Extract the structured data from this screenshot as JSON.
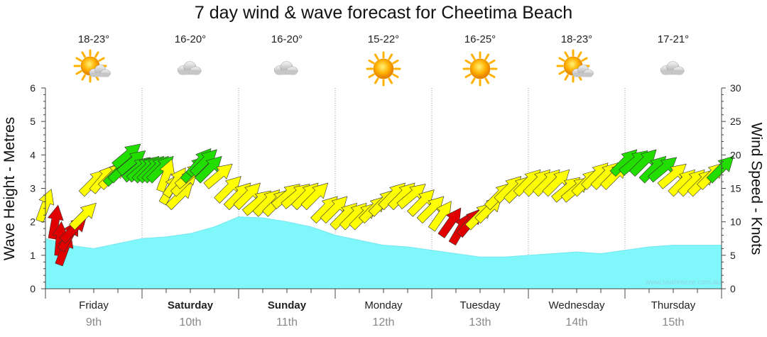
{
  "title": "7 day wind & wave forecast for Cheetima Beach",
  "watermark": "www.seabreeze.com.au",
  "chart_data": {
    "type": "area",
    "left_axis": {
      "label": "Wave Height - Metres",
      "ylim": [
        0,
        6
      ],
      "ticks": [
        "0",
        "1",
        "2",
        "3",
        "4",
        "5",
        "6"
      ]
    },
    "right_axis": {
      "label": "Wind Speed - Knots",
      "ylim": [
        0,
        30
      ],
      "ticks": [
        "0",
        "5",
        "10",
        "15",
        "20",
        "25",
        "30"
      ]
    },
    "days": [
      {
        "day": "Friday",
        "date": "9th",
        "bold": false,
        "temp": "18-23°",
        "icon": "partly-cloudy-icon"
      },
      {
        "day": "Saturday",
        "date": "10th",
        "bold": true,
        "temp": "16-20°",
        "icon": "cloudy-icon"
      },
      {
        "day": "Sunday",
        "date": "11th",
        "bold": true,
        "temp": "16-20°",
        "icon": "cloudy-icon"
      },
      {
        "day": "Monday",
        "date": "12th",
        "bold": false,
        "temp": "15-22°",
        "icon": "sunny-icon"
      },
      {
        "day": "Tuesday",
        "date": "13th",
        "bold": false,
        "temp": "16-25°",
        "icon": "sunny-icon"
      },
      {
        "day": "Wednesday",
        "date": "14th",
        "bold": false,
        "temp": "18-23°",
        "icon": "partly-cloudy-icon"
      },
      {
        "day": "Thursday",
        "date": "15th",
        "bold": false,
        "temp": "17-21°",
        "icon": "cloudy-icon"
      }
    ],
    "wave_height_series": {
      "name": "Wave Height",
      "x_days": [
        0,
        0.25,
        0.5,
        0.75,
        1,
        1.25,
        1.5,
        1.75,
        2,
        2.25,
        2.5,
        2.75,
        3,
        3.25,
        3.5,
        3.75,
        4,
        4.25,
        4.5,
        4.75,
        5,
        5.25,
        5.5,
        5.75,
        6,
        6.25,
        6.5,
        6.75,
        7
      ],
      "values": [
        1.5,
        1.3,
        1.2,
        1.35,
        1.5,
        1.55,
        1.65,
        1.85,
        2.15,
        2.12,
        2.0,
        1.85,
        1.6,
        1.45,
        1.3,
        1.25,
        1.15,
        1.05,
        0.95,
        0.95,
        1.0,
        1.05,
        1.1,
        1.05,
        1.15,
        1.25,
        1.3,
        1.3,
        1.3
      ]
    },
    "wind_series": {
      "name": "Wind Speed",
      "color_scale": {
        "red": "#e00000",
        "yellow": "#ffff00",
        "green": "#22dd00"
      },
      "x_days": [
        0,
        0.1,
        0.15,
        0.2,
        0.25,
        0.3,
        0.4,
        0.5,
        0.6,
        0.7,
        0.75,
        0.8,
        0.85,
        0.9,
        0.95,
        1.0,
        1.05,
        1.1,
        1.15,
        1.2,
        1.25,
        1.3,
        1.35,
        1.4,
        1.45,
        1.5,
        1.55,
        1.6,
        1.65,
        1.7,
        1.8,
        1.9,
        2.0,
        2.1,
        2.2,
        2.3,
        2.4,
        2.5,
        2.6,
        2.7,
        2.8,
        2.9,
        3.0,
        3.1,
        3.2,
        3.3,
        3.4,
        3.5,
        3.6,
        3.7,
        3.8,
        3.9,
        4.0,
        4.1,
        4.2,
        4.3,
        4.4,
        4.5,
        4.6,
        4.7,
        4.8,
        4.9,
        5.0,
        5.1,
        5.2,
        5.3,
        5.4,
        5.5,
        5.6,
        5.7,
        5.8,
        5.9,
        6.0,
        6.1,
        6.2,
        6.3,
        6.4,
        6.5,
        6.6,
        6.7,
        6.8,
        6.9,
        7.0
      ],
      "knots": [
        12.5,
        10,
        7.5,
        6,
        8,
        9,
        11,
        16,
        16.5,
        17,
        17.5,
        18,
        20,
        19,
        18,
        18,
        18,
        18,
        18,
        18,
        17,
        15,
        16,
        14,
        16,
        17,
        18,
        19,
        19,
        18,
        17,
        15,
        14,
        14,
        13,
        13,
        13,
        14,
        14,
        14,
        14,
        12,
        12,
        11,
        11,
        11,
        12,
        13,
        14,
        14,
        14,
        13,
        12,
        11,
        10,
        9,
        10,
        11,
        12,
        14,
        15,
        15,
        16,
        16,
        16,
        16,
        15,
        15,
        16,
        17,
        17,
        17,
        19,
        19,
        19,
        18,
        18,
        17,
        16,
        16,
        16,
        17,
        18
      ],
      "direction_deg": [
        200,
        190,
        185,
        200,
        210,
        225,
        225,
        225,
        220,
        225,
        225,
        225,
        230,
        230,
        230,
        230,
        225,
        225,
        225,
        225,
        200,
        210,
        215,
        225,
        225,
        230,
        225,
        220,
        225,
        225,
        230,
        225,
        225,
        225,
        230,
        225,
        225,
        230,
        230,
        225,
        225,
        225,
        225,
        225,
        225,
        225,
        225,
        225,
        225,
        225,
        230,
        225,
        225,
        215,
        215,
        210,
        220,
        225,
        225,
        225,
        225,
        225,
        225,
        225,
        225,
        225,
        230,
        230,
        225,
        225,
        225,
        225,
        225,
        230,
        225,
        225,
        230,
        230,
        225,
        225,
        225,
        225,
        225
      ]
    }
  }
}
